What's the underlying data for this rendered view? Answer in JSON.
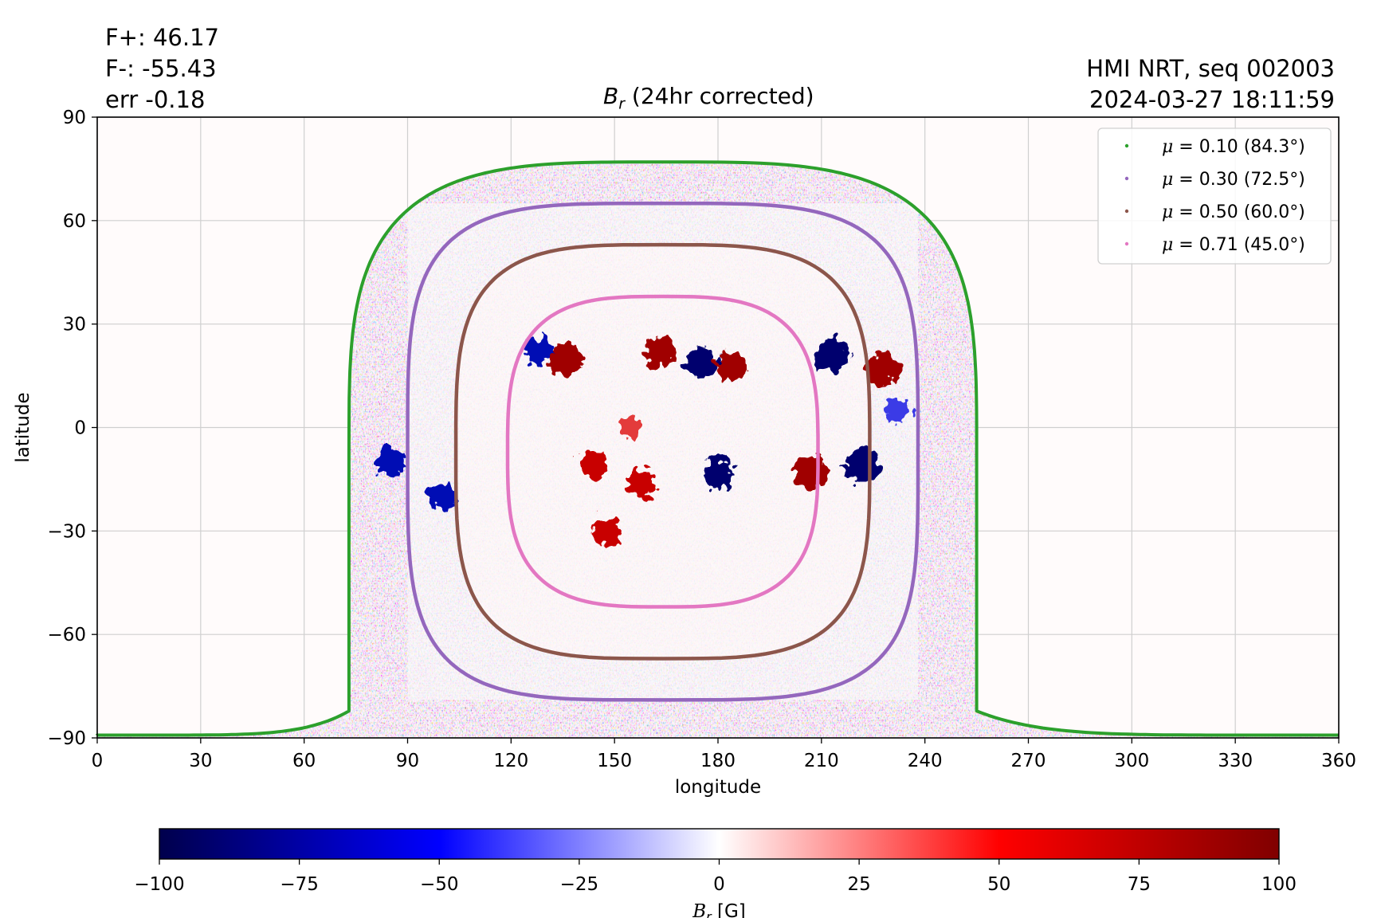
{
  "stats": {
    "flux_pos": "F+: 46.17",
    "flux_neg": "F-: -55.43",
    "err": "err -0.18"
  },
  "header": {
    "source": "HMI NRT, seq 002003",
    "timestamp": "2024-03-27 18:11:59"
  },
  "chart_data": {
    "type": "heatmap",
    "title_symbol": "B",
    "title_subscript": "r",
    "title_rest": " (24hr corrected)",
    "xlabel": "longitude",
    "ylabel": "latitude",
    "xlim": [
      0,
      360
    ],
    "ylim": [
      -90,
      90
    ],
    "xticks": [
      0,
      30,
      60,
      90,
      120,
      150,
      180,
      210,
      240,
      270,
      300,
      330,
      360
    ],
    "yticks": [
      -90,
      -60,
      -30,
      0,
      30,
      60,
      90
    ],
    "ytick_labels": [
      "−90",
      "−60",
      "−30",
      "0",
      "30",
      "60",
      "90"
    ],
    "grid": true,
    "legend_position": "top-right",
    "disk_center_lon": 164,
    "contours": [
      {
        "label_sym": "μ",
        "label_rest": "= 0.10 (84.3°)",
        "mu": 0.1,
        "color": "#2ca02c",
        "half_width_deg": 91,
        "lat_top": 77,
        "lat_bottom": -89
      },
      {
        "label_sym": "μ",
        "label_rest": "= 0.30 (72.5°)",
        "mu": 0.3,
        "color": "#9467bd",
        "half_width_deg": 74,
        "lat_top": 65,
        "lat_bottom": -79
      },
      {
        "label_sym": "μ",
        "label_rest": "= 0.50 (60.0°)",
        "mu": 0.5,
        "color": "#8c564b",
        "half_width_deg": 60,
        "lat_top": 53,
        "lat_bottom": -67
      },
      {
        "label_sym": "μ",
        "label_rest": "= 0.71 (45.0°)",
        "mu": 0.71,
        "color": "#e377c2",
        "half_width_deg": 45,
        "lat_top": 38,
        "lat_bottom": -52
      }
    ],
    "active_regions": [
      {
        "lon": 136,
        "lat": 20,
        "polarity": "positive",
        "strength": 95
      },
      {
        "lon": 128,
        "lat": 22,
        "polarity": "negative",
        "strength": 70
      },
      {
        "lon": 163,
        "lat": 22,
        "polarity": "positive",
        "strength": 85
      },
      {
        "lon": 175,
        "lat": 19,
        "polarity": "negative",
        "strength": 90
      },
      {
        "lon": 184,
        "lat": 18,
        "polarity": "positive",
        "strength": 85
      },
      {
        "lon": 213,
        "lat": 21,
        "polarity": "negative",
        "strength": 100
      },
      {
        "lon": 228,
        "lat": 17,
        "polarity": "positive",
        "strength": 100
      },
      {
        "lon": 207,
        "lat": -13,
        "polarity": "positive",
        "strength": 100
      },
      {
        "lon": 222,
        "lat": -11,
        "polarity": "negative",
        "strength": 100
      },
      {
        "lon": 180,
        "lat": -13,
        "polarity": "negative",
        "strength": 85
      },
      {
        "lon": 144,
        "lat": -11,
        "polarity": "positive",
        "strength": 80
      },
      {
        "lon": 158,
        "lat": -16,
        "polarity": "positive",
        "strength": 70
      },
      {
        "lon": 148,
        "lat": -30,
        "polarity": "positive",
        "strength": 70
      },
      {
        "lon": 85,
        "lat": -10,
        "polarity": "negative",
        "strength": 75
      },
      {
        "lon": 100,
        "lat": -20,
        "polarity": "negative",
        "strength": 65
      },
      {
        "lon": 232,
        "lat": 5,
        "polarity": "negative",
        "strength": 55
      },
      {
        "lon": 155,
        "lat": 0,
        "polarity": "positive",
        "strength": 45
      }
    ],
    "colorbar": {
      "min": -100,
      "max": 100,
      "cmap": "seismic",
      "colors": [
        "#00004c",
        "#0000ff",
        "#ffffff",
        "#ff0000",
        "#800000"
      ],
      "ticks": [
        -100,
        -75,
        -50,
        -25,
        0,
        25,
        50,
        75,
        100
      ],
      "tick_labels": [
        "−100",
        "−75",
        "−50",
        "−25",
        "0",
        "25",
        "50",
        "75",
        "100"
      ],
      "label_symbol": "B",
      "label_subscript": "r",
      "label_unit": " [G]"
    }
  }
}
